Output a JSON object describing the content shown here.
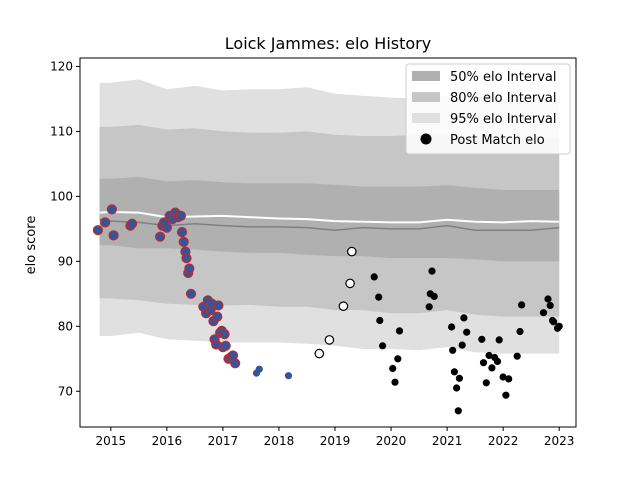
{
  "chart_data": {
    "type": "scatter",
    "title": "Loick Jammes: elo History",
    "xlabel": "",
    "ylabel": "elo score",
    "xlim": [
      2014.45,
      2023.3
    ],
    "ylim": [
      64.5,
      121.3
    ],
    "x_ticks": [
      2015,
      2016,
      2017,
      2018,
      2019,
      2020,
      2021,
      2022,
      2023
    ],
    "y_ticks": [
      70,
      80,
      90,
      100,
      110,
      120
    ],
    "grid": false,
    "legend_position": "top-right",
    "legend": [
      {
        "label": "50% elo Interval",
        "kind": "patch",
        "color": "#b0b0b0"
      },
      {
        "label": "80% elo Interval",
        "kind": "patch",
        "color": "#c6c6c6"
      },
      {
        "label": "95% elo Interval",
        "kind": "patch",
        "color": "#e0e0e0"
      },
      {
        "label": "Post Match elo",
        "kind": "marker",
        "color": "#000000"
      }
    ],
    "bands": {
      "x": [
        2014.8,
        2015.0,
        2015.5,
        2016.0,
        2016.5,
        2017.0,
        2017.5,
        2018.0,
        2018.5,
        2019.0,
        2019.5,
        2020.0,
        2020.5,
        2021.0,
        2021.5,
        2022.0,
        2022.5,
        2023.0
      ],
      "p95_hi": [
        117.5,
        117.5,
        118.0,
        116.5,
        117.0,
        116.3,
        116.5,
        116.5,
        116.8,
        115.8,
        115.5,
        115.2,
        115.0,
        115.5,
        115.2,
        114.8,
        115.3,
        115.3
      ],
      "p80_hi": [
        110.7,
        110.7,
        111.0,
        110.3,
        110.5,
        110.0,
        109.8,
        109.8,
        110.0,
        109.5,
        109.3,
        109.3,
        109.5,
        109.5,
        109.0,
        108.8,
        109.0,
        109.0
      ],
      "p50_hi": [
        102.7,
        102.7,
        103.0,
        102.3,
        102.5,
        102.2,
        102.0,
        102.0,
        102.0,
        101.8,
        101.5,
        101.5,
        101.5,
        101.7,
        101.3,
        101.0,
        101.0,
        101.0
      ],
      "mean": [
        97.5,
        97.6,
        97.5,
        96.8,
        96.9,
        97.0,
        96.8,
        96.6,
        96.5,
        96.2,
        96.1,
        96.0,
        96.0,
        96.4,
        96.1,
        96.0,
        96.2,
        96.1
      ],
      "median": [
        96.5,
        96.2,
        96.0,
        95.5,
        95.8,
        95.5,
        95.3,
        95.3,
        95.2,
        94.8,
        95.2,
        95.0,
        95.0,
        95.5,
        94.8,
        94.8,
        94.8,
        95.2
      ],
      "p50_lo": [
        92.5,
        92.5,
        92.0,
        92.0,
        91.8,
        91.5,
        91.3,
        91.3,
        91.0,
        90.8,
        90.8,
        90.5,
        90.5,
        90.5,
        90.3,
        90.0,
        90.0,
        90.0
      ],
      "p80_lo": [
        84.3,
        84.3,
        84.0,
        83.5,
        83.3,
        83.2,
        83.3,
        83.0,
        83.0,
        82.5,
        82.5,
        82.0,
        82.0,
        82.5,
        81.8,
        81.5,
        81.5,
        81.5
      ],
      "p95_lo": [
        78.5,
        78.5,
        79.0,
        78.0,
        77.8,
        77.5,
        77.5,
        77.5,
        77.3,
        77.0,
        76.5,
        76.5,
        76.3,
        76.8,
        76.0,
        75.8,
        75.8,
        75.8
      ]
    },
    "series": [
      {
        "style": "red-edge-blue",
        "points": [
          [
            2014.77,
            94.8
          ],
          [
            2014.9,
            96.0
          ],
          [
            2015.02,
            98.0
          ],
          [
            2015.05,
            94.0
          ],
          [
            2015.35,
            95.5
          ],
          [
            2015.38,
            95.8
          ],
          [
            2015.88,
            93.8
          ],
          [
            2015.92,
            95.5
          ],
          [
            2015.95,
            96.0
          ],
          [
            2016.0,
            95.2
          ],
          [
            2016.05,
            97.0
          ],
          [
            2016.1,
            96.5
          ],
          [
            2016.15,
            97.5
          ],
          [
            2016.2,
            96.8
          ],
          [
            2016.25,
            97.0
          ],
          [
            2016.27,
            94.5
          ],
          [
            2016.3,
            93.0
          ],
          [
            2016.33,
            91.5
          ],
          [
            2016.35,
            90.5
          ],
          [
            2016.38,
            88.2
          ],
          [
            2016.4,
            88.9
          ],
          [
            2016.43,
            85.0
          ],
          [
            2016.65,
            83.0
          ],
          [
            2016.7,
            82.0
          ],
          [
            2016.73,
            84.0
          ],
          [
            2016.78,
            82.5
          ],
          [
            2016.8,
            83.5
          ],
          [
            2016.83,
            80.8
          ],
          [
            2016.85,
            78.0
          ],
          [
            2016.88,
            77.2
          ],
          [
            2016.9,
            81.5
          ],
          [
            2016.92,
            83.2
          ],
          [
            2016.95,
            79.0
          ],
          [
            2016.98,
            79.3
          ],
          [
            2017.0,
            76.8
          ],
          [
            2017.03,
            78.8
          ],
          [
            2017.05,
            77.0
          ],
          [
            2017.1,
            75.0
          ],
          [
            2017.15,
            75.3
          ],
          [
            2017.18,
            75.5
          ],
          [
            2017.22,
            74.3
          ]
        ]
      },
      {
        "style": "blue",
        "points": [
          [
            2017.6,
            72.8
          ],
          [
            2017.65,
            73.4
          ],
          [
            2018.17,
            72.4
          ]
        ]
      },
      {
        "style": "white",
        "points": [
          [
            2018.72,
            75.8
          ],
          [
            2018.9,
            77.9
          ],
          [
            2019.15,
            83.1
          ],
          [
            2019.27,
            86.6
          ],
          [
            2019.3,
            91.5
          ]
        ]
      },
      {
        "style": "black",
        "points": [
          [
            2019.7,
            87.6
          ],
          [
            2019.78,
            84.5
          ],
          [
            2019.8,
            80.9
          ],
          [
            2019.85,
            77.0
          ],
          [
            2020.03,
            73.5
          ],
          [
            2020.07,
            71.4
          ],
          [
            2020.12,
            75.0
          ],
          [
            2020.15,
            79.3
          ],
          [
            2020.68,
            83.0
          ],
          [
            2020.7,
            85.0
          ],
          [
            2020.73,
            88.5
          ],
          [
            2020.77,
            84.6
          ],
          [
            2021.08,
            79.9
          ],
          [
            2021.1,
            76.3
          ],
          [
            2021.13,
            73.0
          ],
          [
            2021.17,
            70.5
          ],
          [
            2021.2,
            67.0
          ],
          [
            2021.22,
            72.0
          ],
          [
            2021.27,
            77.1
          ],
          [
            2021.3,
            81.3
          ],
          [
            2021.35,
            79.1
          ],
          [
            2021.62,
            78.0
          ],
          [
            2021.65,
            74.4
          ],
          [
            2021.7,
            71.3
          ],
          [
            2021.75,
            75.5
          ],
          [
            2021.8,
            73.6
          ],
          [
            2021.85,
            75.2
          ],
          [
            2021.9,
            74.6
          ],
          [
            2021.93,
            77.9
          ],
          [
            2022.0,
            72.2
          ],
          [
            2022.05,
            69.4
          ],
          [
            2022.1,
            71.9
          ],
          [
            2022.25,
            75.4
          ],
          [
            2022.3,
            79.2
          ],
          [
            2022.33,
            83.3
          ],
          [
            2022.72,
            82.1
          ],
          [
            2022.8,
            84.2
          ],
          [
            2022.84,
            83.2
          ],
          [
            2022.88,
            80.9
          ],
          [
            2022.9,
            80.7
          ],
          [
            2022.97,
            79.7
          ],
          [
            2023.0,
            80.0
          ]
        ]
      }
    ]
  }
}
